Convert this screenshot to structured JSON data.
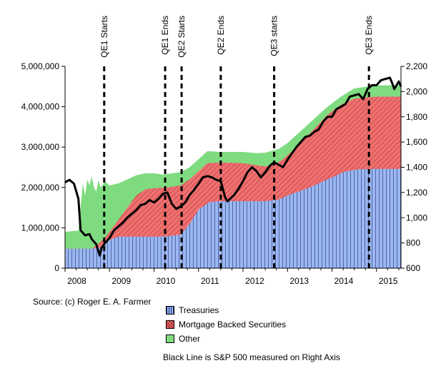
{
  "chart_data": {
    "type": "area",
    "title": "",
    "xlabel": "",
    "ylabel": "",
    "x_ticks": [
      "2008",
      "2009",
      "2010",
      "2011",
      "2012",
      "2013",
      "2014",
      "2015"
    ],
    "left_axis": {
      "range": [
        0,
        5000000
      ],
      "ticks": [
        0,
        1000000,
        2000000,
        3000000,
        4000000,
        5000000
      ],
      "tick_labels": [
        "0",
        "1,000,000",
        "2,000,000",
        "3,000,000",
        "4,000,000",
        "5,000,000"
      ]
    },
    "right_axis": {
      "range": [
        600,
        2200
      ],
      "ticks": [
        600,
        800,
        1000,
        1200,
        1400,
        1600,
        1800,
        2000,
        2200
      ],
      "tick_labels": [
        "600",
        "800",
        "1,000",
        "1,200",
        "1,400",
        "1,600",
        "1,800",
        "2,000",
        "2,200"
      ]
    },
    "x_domain": [
      2008.0,
      2015.55
    ],
    "series": [
      {
        "name": "Treasuries",
        "color": "#9bb7f0",
        "points": [
          [
            2008.0,
            480000
          ],
          [
            2008.6,
            480000
          ],
          [
            2008.8,
            520000
          ],
          [
            2009.0,
            700000
          ],
          [
            2009.2,
            780000
          ],
          [
            2009.5,
            780000
          ],
          [
            2010.0,
            780000
          ],
          [
            2010.3,
            790000
          ],
          [
            2010.6,
            830000
          ],
          [
            2010.8,
            1100000
          ],
          [
            2011.0,
            1450000
          ],
          [
            2011.25,
            1640000
          ],
          [
            2011.5,
            1660000
          ],
          [
            2012.0,
            1660000
          ],
          [
            2012.5,
            1660000
          ],
          [
            2012.8,
            1700000
          ],
          [
            2013.0,
            1800000
          ],
          [
            2013.5,
            2000000
          ],
          [
            2014.0,
            2250000
          ],
          [
            2014.3,
            2400000
          ],
          [
            2014.6,
            2450000
          ],
          [
            2015.0,
            2460000
          ],
          [
            2015.55,
            2460000
          ]
        ]
      },
      {
        "name": "Mortgage Backed Securities",
        "color": "#f07070",
        "points": [
          [
            2008.0,
            480000
          ],
          [
            2008.6,
            480000
          ],
          [
            2008.8,
            650000
          ],
          [
            2009.0,
            900000
          ],
          [
            2009.2,
            1200000
          ],
          [
            2009.4,
            1500000
          ],
          [
            2009.6,
            1800000
          ],
          [
            2009.8,
            1950000
          ],
          [
            2010.0,
            1980000
          ],
          [
            2010.3,
            2000000
          ],
          [
            2010.6,
            2050000
          ],
          [
            2010.8,
            2200000
          ],
          [
            2011.0,
            2400000
          ],
          [
            2011.2,
            2600000
          ],
          [
            2011.5,
            2620000
          ],
          [
            2012.0,
            2600000
          ],
          [
            2012.3,
            2550000
          ],
          [
            2012.5,
            2520000
          ],
          [
            2012.7,
            2560000
          ],
          [
            2012.9,
            2700000
          ],
          [
            2013.0,
            2800000
          ],
          [
            2013.3,
            3100000
          ],
          [
            2013.6,
            3450000
          ],
          [
            2013.9,
            3800000
          ],
          [
            2014.2,
            4050000
          ],
          [
            2014.5,
            4200000
          ],
          [
            2015.0,
            4250000
          ],
          [
            2015.55,
            4250000
          ]
        ]
      },
      {
        "name": "Other",
        "color": "#7fdb7f",
        "points": [
          [
            2008.0,
            900000
          ],
          [
            2008.2,
            920000
          ],
          [
            2008.3,
            930000
          ],
          [
            2008.35,
            1500000
          ],
          [
            2008.4,
            2100000
          ],
          [
            2008.45,
            1800000
          ],
          [
            2008.5,
            2200000
          ],
          [
            2008.55,
            2050000
          ],
          [
            2008.6,
            2270000
          ],
          [
            2008.65,
            2000000
          ],
          [
            2008.7,
            1900000
          ],
          [
            2008.75,
            2180000
          ],
          [
            2008.8,
            2000000
          ],
          [
            2008.9,
            2150000
          ],
          [
            2009.0,
            2050000
          ],
          [
            2009.2,
            2100000
          ],
          [
            2009.4,
            2200000
          ],
          [
            2009.6,
            2300000
          ],
          [
            2009.8,
            2350000
          ],
          [
            2010.0,
            2350000
          ],
          [
            2010.2,
            2320000
          ],
          [
            2010.4,
            2350000
          ],
          [
            2010.6,
            2380000
          ],
          [
            2010.8,
            2500000
          ],
          [
            2011.0,
            2700000
          ],
          [
            2011.2,
            2900000
          ],
          [
            2011.5,
            2880000
          ],
          [
            2012.0,
            2880000
          ],
          [
            2012.3,
            2850000
          ],
          [
            2012.5,
            2860000
          ],
          [
            2012.8,
            2950000
          ],
          [
            2013.0,
            3100000
          ],
          [
            2013.3,
            3400000
          ],
          [
            2013.6,
            3700000
          ],
          [
            2013.9,
            4000000
          ],
          [
            2014.2,
            4250000
          ],
          [
            2014.5,
            4450000
          ],
          [
            2015.0,
            4530000
          ],
          [
            2015.55,
            4530000
          ]
        ]
      },
      {
        "name": "S&P 500",
        "color": "#000000",
        "axis": "right",
        "points": [
          [
            2008.0,
            1280
          ],
          [
            2008.1,
            1300
          ],
          [
            2008.2,
            1270
          ],
          [
            2008.3,
            1150
          ],
          [
            2008.35,
            900
          ],
          [
            2008.45,
            860
          ],
          [
            2008.55,
            870
          ],
          [
            2008.6,
            830
          ],
          [
            2008.7,
            790
          ],
          [
            2008.78,
            700
          ],
          [
            2008.82,
            760
          ],
          [
            2008.9,
            800
          ],
          [
            2009.0,
            840
          ],
          [
            2009.1,
            900
          ],
          [
            2009.2,
            930
          ],
          [
            2009.3,
            960
          ],
          [
            2009.4,
            1000
          ],
          [
            2009.5,
            1030
          ],
          [
            2009.6,
            1060
          ],
          [
            2009.7,
            1100
          ],
          [
            2009.8,
            1110
          ],
          [
            2009.9,
            1140
          ],
          [
            2010.0,
            1120
          ],
          [
            2010.1,
            1150
          ],
          [
            2010.2,
            1190
          ],
          [
            2010.3,
            1200
          ],
          [
            2010.4,
            1110
          ],
          [
            2010.5,
            1070
          ],
          [
            2010.6,
            1090
          ],
          [
            2010.7,
            1120
          ],
          [
            2010.8,
            1180
          ],
          [
            2010.9,
            1220
          ],
          [
            2011.0,
            1270
          ],
          [
            2011.1,
            1320
          ],
          [
            2011.2,
            1330
          ],
          [
            2011.3,
            1320
          ],
          [
            2011.4,
            1300
          ],
          [
            2011.5,
            1290
          ],
          [
            2011.6,
            1160
          ],
          [
            2011.65,
            1130
          ],
          [
            2011.8,
            1180
          ],
          [
            2011.9,
            1230
          ],
          [
            2012.0,
            1290
          ],
          [
            2012.1,
            1360
          ],
          [
            2012.2,
            1400
          ],
          [
            2012.3,
            1370
          ],
          [
            2012.4,
            1320
          ],
          [
            2012.5,
            1360
          ],
          [
            2012.6,
            1410
          ],
          [
            2012.7,
            1440
          ],
          [
            2012.8,
            1420
          ],
          [
            2012.9,
            1400
          ],
          [
            2013.0,
            1460
          ],
          [
            2013.1,
            1510
          ],
          [
            2013.2,
            1560
          ],
          [
            2013.3,
            1600
          ],
          [
            2013.4,
            1640
          ],
          [
            2013.5,
            1650
          ],
          [
            2013.6,
            1680
          ],
          [
            2013.7,
            1700
          ],
          [
            2013.8,
            1760
          ],
          [
            2013.9,
            1800
          ],
          [
            2014.0,
            1800
          ],
          [
            2014.1,
            1860
          ],
          [
            2014.2,
            1880
          ],
          [
            2014.3,
            1900
          ],
          [
            2014.4,
            1960
          ],
          [
            2014.5,
            1970
          ],
          [
            2014.6,
            1980
          ],
          [
            2014.7,
            1940
          ],
          [
            2014.8,
            2020
          ],
          [
            2014.9,
            2050
          ],
          [
            2015.0,
            2050
          ],
          [
            2015.1,
            2090
          ],
          [
            2015.2,
            2100
          ],
          [
            2015.3,
            2110
          ],
          [
            2015.35,
            2070
          ],
          [
            2015.4,
            2020
          ],
          [
            2015.45,
            2050
          ],
          [
            2015.5,
            2080
          ],
          [
            2015.55,
            2040
          ]
        ]
      }
    ],
    "events": [
      {
        "label": "QE1 Starts",
        "x": 2008.88
      },
      {
        "label": "QE1 Ends",
        "x": 2010.25
      },
      {
        "label": "QE2 Starts",
        "x": 2010.62
      },
      {
        "label": "QE2 Ends",
        "x": 2011.5
      },
      {
        "label": "QE3 starts",
        "x": 2012.7
      },
      {
        "label": "QE3 Ends",
        "x": 2014.83
      }
    ]
  },
  "source_text": "Source: (c) Roger E. A. Farmer",
  "legend": [
    {
      "label": "Treasuries",
      "color": "#9bb7f0"
    },
    {
      "label": "Mortgage Backed Securities",
      "color": "#f07070"
    },
    {
      "label": "Other",
      "color": "#7fdb7f"
    }
  ],
  "note": "Black Line is S&P 500 measured on Right Axis"
}
